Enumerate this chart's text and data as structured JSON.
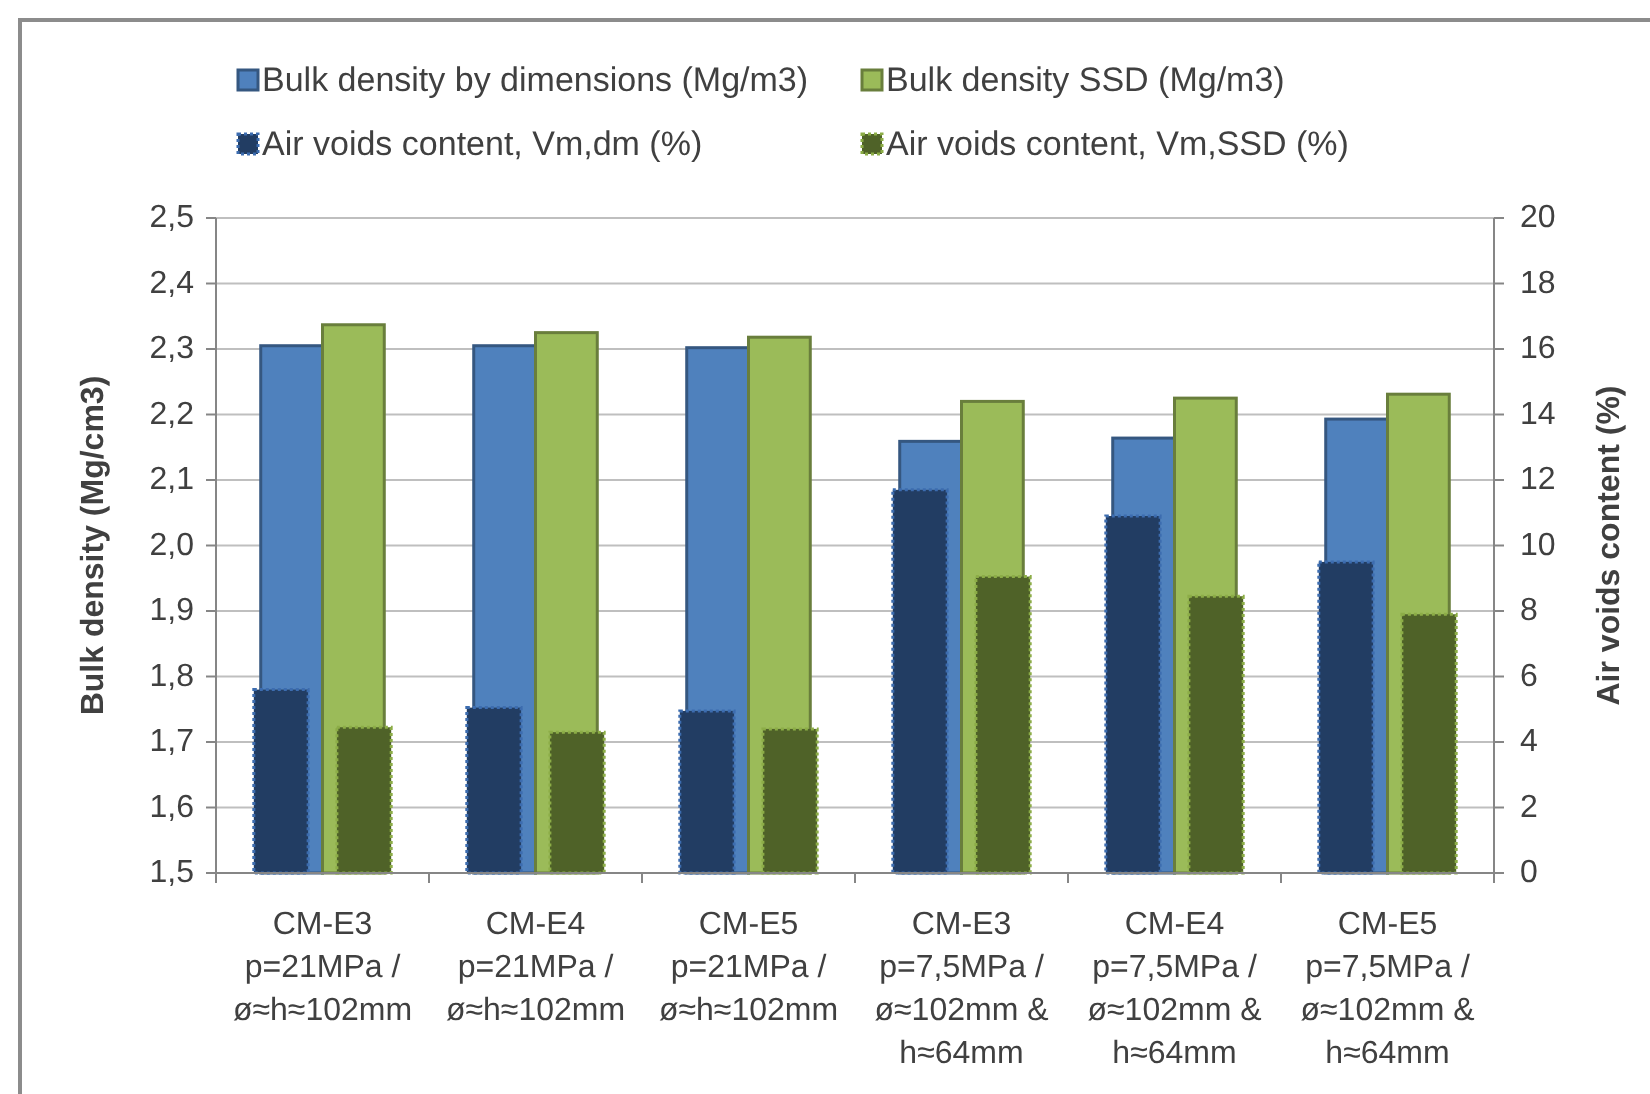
{
  "chart_data": {
    "type": "bar",
    "categories": [
      "CM-E3\np=21MPa /\nø≈h≈102mm",
      "CM-E4\np=21MPa /\nø≈h≈102mm",
      "CM-E5\np=21MPa /\nø≈h≈102mm",
      "CM-E3\np=7,5MPa /\nø≈102mm &\nh≈64mm",
      "CM-E4\np=7,5MPa /\nø≈102mm &\nh≈64mm",
      "CM-E5\np=7,5MPa /\nø≈102mm &\nh≈64mm"
    ],
    "ylabel": "Bulk density (Mg/cm3)",
    "y2label": "Air voids content (%)",
    "ylim": [
      1.5,
      2.5
    ],
    "yticks": [
      {
        "value": 1.5,
        "label": "1,5"
      },
      {
        "value": 1.6,
        "label": "1,6"
      },
      {
        "value": 1.7,
        "label": "1,7"
      },
      {
        "value": 1.8,
        "label": "1,8"
      },
      {
        "value": 1.9,
        "label": "1,9"
      },
      {
        "value": 2.0,
        "label": "2,0"
      },
      {
        "value": 2.1,
        "label": "2,1"
      },
      {
        "value": 2.2,
        "label": "2,2"
      },
      {
        "value": 2.3,
        "label": "2,3"
      },
      {
        "value": 2.4,
        "label": "2,4"
      },
      {
        "value": 2.5,
        "label": "2,5"
      }
    ],
    "y2lim": [
      0,
      20
    ],
    "y2ticks": [
      0,
      2,
      4,
      6,
      8,
      10,
      12,
      14,
      16,
      18,
      20
    ],
    "grid": "y",
    "legend": "top",
    "series": [
      {
        "name": "Bulk density by dimensions (Mg/m3)",
        "color": "#4f81bd",
        "values": [
          2.305,
          2.305,
          2.302,
          2.159,
          2.164,
          2.193
        ]
      },
      {
        "name": "Bulk density SSD (Mg/m3)",
        "color": "#9bbb59",
        "values": [
          2.337,
          2.325,
          2.318,
          2.22,
          2.225,
          2.231
        ]
      },
      {
        "name": "Air voids content, Vm,dm (%)",
        "color": "#223d63",
        "axis": "y2",
        "line_style": "dotted",
        "values": [
          5.6,
          5.05,
          4.95,
          11.7,
          10.9,
          9.5
        ]
      },
      {
        "name": "Air voids content, Vm,SSD (%)",
        "color": "#4f6228",
        "axis": "y2",
        "line_style": "dotted",
        "values": [
          4.45,
          4.3,
          4.4,
          9.05,
          8.45,
          7.9
        ]
      }
    ]
  }
}
